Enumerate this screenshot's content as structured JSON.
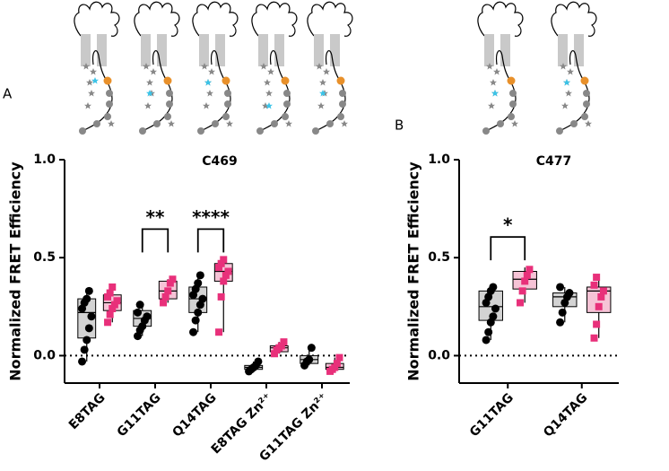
{
  "chart_data": [
    {
      "type": "box",
      "panel": "A",
      "title": "C469",
      "ylabel": "Normalized FRET Efficiency",
      "categories": [
        "E8TAG",
        "G11TAG",
        "Q14TAG",
        "E8TAG Zn²⁺",
        "G11TAG Zn²⁺"
      ],
      "ylim": [
        -0.14,
        1.0
      ],
      "yticks": [
        {
          "value": 0,
          "label": "0.0"
        },
        {
          "value": 0.5,
          "label": "0.5"
        },
        {
          "value": 1,
          "label": "1.0"
        }
      ],
      "hline": 0,
      "significance": [
        null,
        "**",
        "****",
        null,
        null
      ],
      "series": [
        {
          "color": "#000000",
          "fill": "#d3d3d3",
          "marker": "circle",
          "boxes": [
            {
              "min": -0.03,
              "q1": 0.09,
              "median": 0.22,
              "q3": 0.29,
              "max": 0.34,
              "points": [
                -0.03,
                0.03,
                0.08,
                0.14,
                0.2,
                0.24,
                0.27,
                0.29,
                0.33
              ]
            },
            {
              "min": 0.1,
              "q1": 0.15,
              "median": 0.19,
              "q3": 0.23,
              "max": 0.27,
              "points": [
                0.1,
                0.13,
                0.15,
                0.18,
                0.2,
                0.22,
                0.26
              ]
            },
            {
              "min": 0.12,
              "q1": 0.22,
              "median": 0.29,
              "q3": 0.35,
              "max": 0.41,
              "points": [
                0.12,
                0.18,
                0.22,
                0.26,
                0.29,
                0.31,
                0.34,
                0.37,
                0.41
              ]
            },
            {
              "min": -0.08,
              "q1": -0.07,
              "median": -0.06,
              "q3": -0.05,
              "max": -0.03,
              "points": [
                -0.08,
                -0.07,
                -0.06,
                -0.05,
                -0.03
              ]
            },
            {
              "min": -0.05,
              "q1": -0.04,
              "median": -0.02,
              "q3": 0.0,
              "max": 0.04,
              "points": [
                -0.05,
                -0.03,
                -0.02,
                0.04
              ]
            }
          ]
        },
        {
          "color": "#e8307a",
          "fill": "#f6c3d6",
          "marker": "square",
          "boxes": [
            {
              "min": 0.17,
              "q1": 0.23,
              "median": 0.27,
              "q3": 0.31,
              "max": 0.36,
              "points": [
                0.17,
                0.21,
                0.24,
                0.26,
                0.28,
                0.3,
                0.32,
                0.35
              ]
            },
            {
              "min": 0.27,
              "q1": 0.29,
              "median": 0.33,
              "q3": 0.38,
              "max": 0.39,
              "points": [
                0.27,
                0.3,
                0.33,
                0.37,
                0.39
              ]
            },
            {
              "min": 0.12,
              "q1": 0.38,
              "median": 0.43,
              "q3": 0.47,
              "max": 0.49,
              "points": [
                0.12,
                0.3,
                0.38,
                0.41,
                0.43,
                0.45,
                0.47,
                0.49
              ]
            },
            {
              "min": 0.01,
              "q1": 0.02,
              "median": 0.04,
              "q3": 0.05,
              "max": 0.07,
              "points": [
                0.01,
                0.03,
                0.04,
                0.05,
                0.07
              ]
            },
            {
              "min": -0.08,
              "q1": -0.07,
              "median": -0.06,
              "q3": -0.04,
              "max": -0.01,
              "points": [
                -0.08,
                -0.07,
                -0.06,
                -0.04,
                -0.01
              ]
            }
          ]
        }
      ]
    },
    {
      "type": "box",
      "panel": "B",
      "title": "C477",
      "ylabel": "Normalized FRET Efficiency",
      "categories": [
        "G11TAG",
        "Q14TAG"
      ],
      "ylim": [
        -0.14,
        1.0
      ],
      "yticks": [
        {
          "value": 0,
          "label": "0.0"
        },
        {
          "value": 0.5,
          "label": "0.5"
        },
        {
          "value": 1,
          "label": "1.0"
        }
      ],
      "hline": 0,
      "significance": [
        "*",
        null
      ],
      "series": [
        {
          "color": "#000000",
          "fill": "#d3d3d3",
          "marker": "circle",
          "boxes": [
            {
              "min": 0.08,
              "q1": 0.18,
              "median": 0.25,
              "q3": 0.33,
              "max": 0.36,
              "points": [
                0.08,
                0.12,
                0.17,
                0.2,
                0.24,
                0.27,
                0.3,
                0.33,
                0.35
              ]
            },
            {
              "min": 0.17,
              "q1": 0.25,
              "median": 0.3,
              "q3": 0.32,
              "max": 0.35,
              "points": [
                0.17,
                0.22,
                0.27,
                0.3,
                0.32,
                0.35
              ]
            }
          ]
        },
        {
          "color": "#e8307a",
          "fill": "#f6c3d6",
          "marker": "square",
          "boxes": [
            {
              "min": 0.27,
              "q1": 0.34,
              "median": 0.39,
              "q3": 0.43,
              "max": 0.45,
              "points": [
                0.27,
                0.33,
                0.38,
                0.41,
                0.44
              ]
            },
            {
              "min": 0.09,
              "q1": 0.22,
              "median": 0.33,
              "q3": 0.35,
              "max": 0.4,
              "points": [
                0.09,
                0.16,
                0.25,
                0.3,
                0.33,
                0.36,
                0.4
              ]
            }
          ]
        }
      ]
    }
  ]
}
